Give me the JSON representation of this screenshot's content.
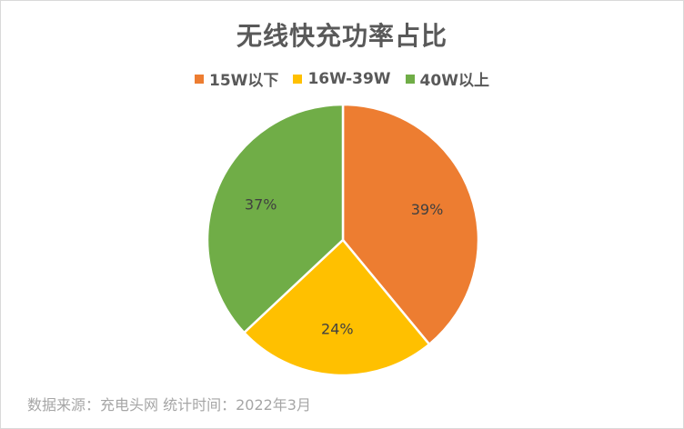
{
  "chart_data": {
    "type": "pie",
    "title": "无线快充功率占比",
    "categories": [
      "15W以下",
      "16W-39W",
      "40W以上"
    ],
    "values": [
      39,
      24,
      37
    ],
    "data_labels": [
      "39%",
      "24%",
      "37%"
    ],
    "colors": [
      "#ED7D31",
      "#FFC000",
      "#70AD47"
    ],
    "legend_position": "top",
    "start_angle": "12 o'clock, clockwise"
  },
  "footer": {
    "source": "数据来源：充电头网  统计时间：2022年3月"
  }
}
